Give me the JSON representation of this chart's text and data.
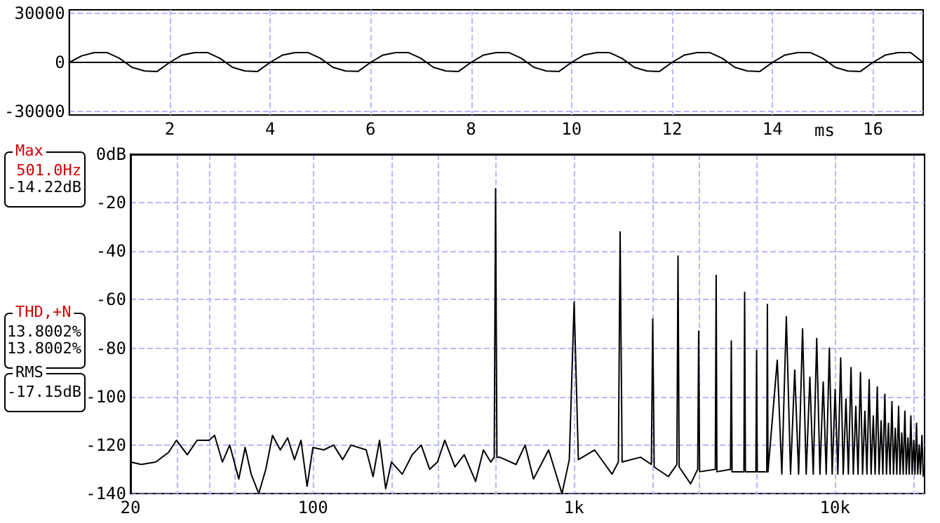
{
  "chart_data": [
    {
      "type": "line",
      "xlabel": "ms",
      "xlim": [
        0,
        17
      ],
      "xticks": [
        2,
        4,
        6,
        8,
        10,
        12,
        14,
        16
      ],
      "ylim": [
        -32000,
        32000
      ],
      "yticks": [
        -30000,
        0,
        30000
      ],
      "grid": true,
      "marker": "none",
      "line_style": "solid",
      "x": [
        0,
        0.25,
        0.5,
        0.75,
        1,
        1.25,
        1.5,
        1.75,
        2,
        2.25,
        2.5,
        2.75,
        3,
        3.25,
        3.5,
        3.75,
        4,
        4.25,
        4.5,
        4.75,
        5,
        5.25,
        5.5,
        5.75,
        6,
        6.25,
        6.5,
        6.75,
        7,
        7.25,
        7.5,
        7.75,
        8,
        8.25,
        8.5,
        8.75,
        9,
        9.25,
        9.5,
        9.75,
        10,
        10.25,
        10.5,
        10.75,
        11,
        11.25,
        11.5,
        11.75,
        12,
        12.25,
        12.5,
        12.75,
        13,
        13.25,
        13.5,
        13.75,
        14,
        14.25,
        14.5,
        14.75,
        15,
        15.25,
        15.5,
        15.75,
        16,
        16.25,
        16.5,
        16.75,
        17
      ],
      "series": [
        {
          "color": "#000000",
          "values": [
            0,
            4000,
            6000,
            6000,
            2500,
            -3000,
            -5200,
            -5500,
            0,
            4500,
            6000,
            6000,
            2500,
            -3000,
            -5200,
            -5500,
            0,
            4500,
            6000,
            6000,
            2500,
            -3000,
            -5200,
            -5500,
            0,
            4500,
            6000,
            6000,
            2500,
            -3000,
            -5200,
            -5500,
            0,
            4500,
            6000,
            6000,
            2500,
            -3000,
            -5200,
            -5500,
            0,
            4500,
            6000,
            6000,
            2500,
            -3000,
            -5200,
            -5500,
            0,
            4500,
            6000,
            6000,
            2500,
            -3000,
            -5200,
            -5500,
            0,
            4500,
            6000,
            6000,
            2500,
            -3000,
            -5200,
            -5500,
            0,
            4500,
            6000,
            6000,
            0
          ]
        }
      ]
    },
    {
      "type": "line",
      "log": "x",
      "xlim": [
        20,
        22050
      ],
      "xticks": [
        20,
        {
          "value": 30,
          "label": null
        },
        {
          "value": 40,
          "label": null
        },
        {
          "value": 50,
          "label": null
        },
        100,
        {
          "value": 200,
          "label": null
        },
        {
          "value": 300,
          "label": null
        },
        {
          "value": 500,
          "label": null
        },
        {
          "value": 1000,
          "label": "1k"
        },
        {
          "value": 2000,
          "label": null
        },
        {
          "value": 3000,
          "label": null
        },
        {
          "value": 5000,
          "label": null
        },
        {
          "value": 10000,
          "label": "10k"
        },
        {
          "value": 20000,
          "label": null
        }
      ],
      "ylim": [
        -140,
        0
      ],
      "yticks": [
        {
          "value": 0,
          "label": "0dB"
        },
        -20,
        -40,
        -60,
        -80,
        -100,
        -120,
        -140
      ],
      "grid": true,
      "marker": "none",
      "line_style": "solid",
      "annotations": [
        "Max\n501.0Hz\n-14.22dB",
        "THD,+N\n13.8002%\n13.8002%",
        "RMS\n-17.15dB"
      ],
      "x": [
        20,
        22,
        25,
        28,
        30,
        33,
        36,
        40,
        42,
        45,
        48,
        52,
        55,
        58,
        62,
        66,
        70,
        75,
        80,
        85,
        90,
        95,
        100,
        110,
        120,
        130,
        140,
        160,
        170,
        180,
        190,
        200,
        220,
        240,
        260,
        280,
        300,
        320,
        350,
        380,
        420,
        450,
        480,
        495,
        501,
        507,
        520,
        600,
        650,
        700,
        800,
        900,
        960,
        1002,
        1040,
        1200,
        1400,
        1480,
        1503,
        1530,
        1800,
        1980,
        2004,
        2030,
        2300,
        2480,
        2505,
        2530,
        2800,
        2980,
        3006,
        3030,
        3480,
        3507,
        3530,
        3980,
        4008,
        4035,
        4480,
        4509,
        4540,
        4980,
        5010,
        5040,
        5480,
        5511,
        5540,
        6012,
        6260,
        6513,
        6760,
        7014,
        7260,
        7515,
        7760,
        8016,
        8260,
        8517,
        8760,
        9018,
        9260,
        9519,
        9760,
        10020,
        10260,
        10521,
        10760,
        11022,
        11260,
        11523,
        11760,
        12024,
        12260,
        12525,
        12760,
        13026,
        13260,
        13527,
        13760,
        14028,
        14260,
        14529,
        14760,
        15030,
        15260,
        15531,
        15760,
        16032,
        16260,
        16533,
        16760,
        17034,
        17260,
        17535,
        17760,
        18036,
        18260,
        18537,
        18760,
        19038,
        19260,
        19539,
        19760,
        20040,
        20260,
        20541,
        20760,
        21042,
        21260,
        21543,
        21800
      ],
      "series": [
        {
          "color": "#000000",
          "values": [
            -127,
            -128,
            -127,
            -123,
            -118,
            -124,
            -118,
            -118,
            -116,
            -127,
            -120,
            -134,
            -121,
            -132,
            -140,
            -130,
            -116,
            -122,
            -117,
            -126,
            -118,
            -137,
            -121,
            -122,
            -120,
            -126,
            -120,
            -122,
            -133,
            -118,
            -138,
            -127,
            -132,
            -124,
            -120,
            -130,
            -127,
            -118,
            -129,
            -124,
            -135,
            -122,
            -127,
            -125,
            -14.22,
            -125,
            -125,
            -128,
            -120,
            -134,
            -122,
            -140,
            -126,
            -61,
            -126,
            -122,
            -132,
            -127,
            -32,
            -127,
            -125,
            -128,
            -68,
            -129,
            -133,
            -128,
            -42,
            -129,
            -136,
            -130,
            -73,
            -131,
            -130,
            -50,
            -131,
            -130,
            -77,
            -131,
            -131,
            -57,
            -131,
            -131,
            -81,
            -131,
            -131,
            -62,
            -131,
            -85,
            -132,
            -67,
            -132,
            -89,
            -132,
            -72,
            -132,
            -92,
            -132,
            -76,
            -132,
            -94,
            -132,
            -80,
            -132,
            -97,
            -132,
            -84,
            -132,
            -101,
            -132,
            -88,
            -132,
            -104,
            -132,
            -90,
            -132,
            -106,
            -132,
            -93,
            -132,
            -108,
            -132,
            -96,
            -132,
            -110,
            -132,
            -99,
            -132,
            -111,
            -132,
            -102,
            -132,
            -113,
            -132,
            -104,
            -132,
            -115,
            -132,
            -106,
            -132,
            -117,
            -132,
            -108,
            -132,
            -118,
            -132,
            -111,
            -132,
            -120,
            -132,
            -116,
            -133
          ]
        }
      ]
    }
  ]
}
